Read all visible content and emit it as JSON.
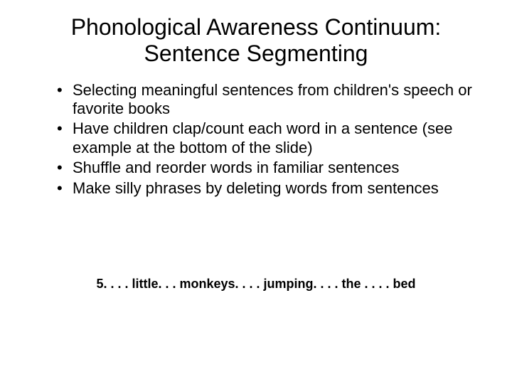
{
  "title_fontsize": 32,
  "body_fontsize": 22,
  "footer_fontsize": 18,
  "text_color": "#000000",
  "background_color": "#ffffff",
  "font_family": "Comic Sans MS",
  "title": {
    "line1": "Phonological Awareness Continuum:",
    "line2": "Sentence Segmenting"
  },
  "bullets": [
    "Selecting meaningful sentences from children's speech or favorite books",
    "Have children clap/count each word in a sentence (see example at the bottom of the slide)",
    "Shuffle and reorder words in familiar sentences",
    "Make silly phrases by deleting words from sentences"
  ],
  "footer_example": "5. . . . little. . . monkeys. . . . jumping. . . . the . . . . bed"
}
